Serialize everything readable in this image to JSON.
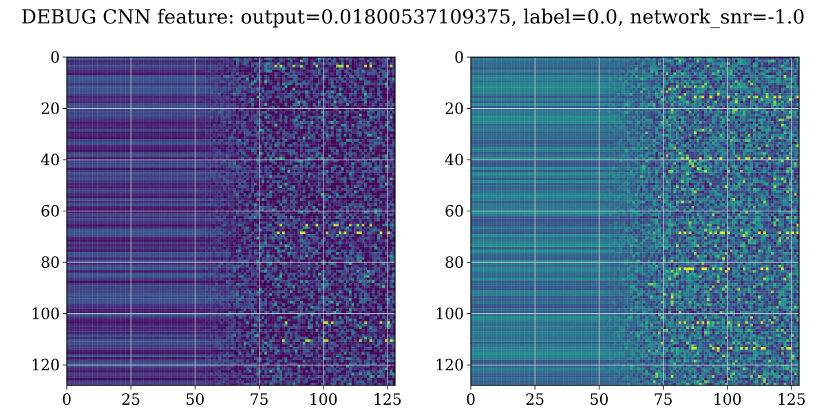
{
  "figure": {
    "title": "DEBUG CNN feature: output=0.01800537109375, label=0.0, network_snr=-1.0"
  },
  "chart_data": [
    {
      "type": "heatmap",
      "name": "left",
      "title": "",
      "xlabel": "",
      "ylabel": "",
      "colormap": "viridis",
      "rows": 128,
      "cols": 128,
      "xlim": [
        0,
        128
      ],
      "ylim": [
        128,
        0
      ],
      "xticks": [
        "0",
        "25",
        "50",
        "75",
        "100",
        "125"
      ],
      "yticks": [
        "0",
        "20",
        "40",
        "60",
        "80",
        "100",
        "120"
      ],
      "xtick_values": [
        0,
        25,
        50,
        75,
        100,
        125
      ],
      "ytick_values": [
        0,
        20,
        40,
        60,
        80,
        100,
        120
      ],
      "grid": true,
      "value_profile": {
        "smooth_level": 0.16,
        "noisy_level": 0.12,
        "transition_start": 50,
        "transition_end": 75,
        "hotspot_rows": [
          3,
          65,
          68,
          103,
          110
        ],
        "hotspot_level": 0.85
      }
    },
    {
      "type": "heatmap",
      "name": "right",
      "title": "",
      "xlabel": "",
      "ylabel": "",
      "colormap": "viridis",
      "rows": 128,
      "cols": 128,
      "xlim": [
        0,
        128
      ],
      "ylim": [
        128,
        0
      ],
      "xticks": [
        "0",
        "25",
        "50",
        "75",
        "100",
        "125"
      ],
      "yticks": [
        "0",
        "20",
        "40",
        "60",
        "80",
        "100",
        "120"
      ],
      "xtick_values": [
        0,
        25,
        50,
        75,
        100,
        125
      ],
      "ytick_values": [
        0,
        20,
        40,
        60,
        80,
        100,
        120
      ],
      "grid": true,
      "value_profile": {
        "smooth_level": 0.38,
        "noisy_level": 0.34,
        "transition_start": 50,
        "transition_end": 75,
        "hotspot_rows": [
          15,
          39,
          68,
          82,
          103,
          113
        ],
        "hotspot_level": 0.9
      }
    }
  ]
}
